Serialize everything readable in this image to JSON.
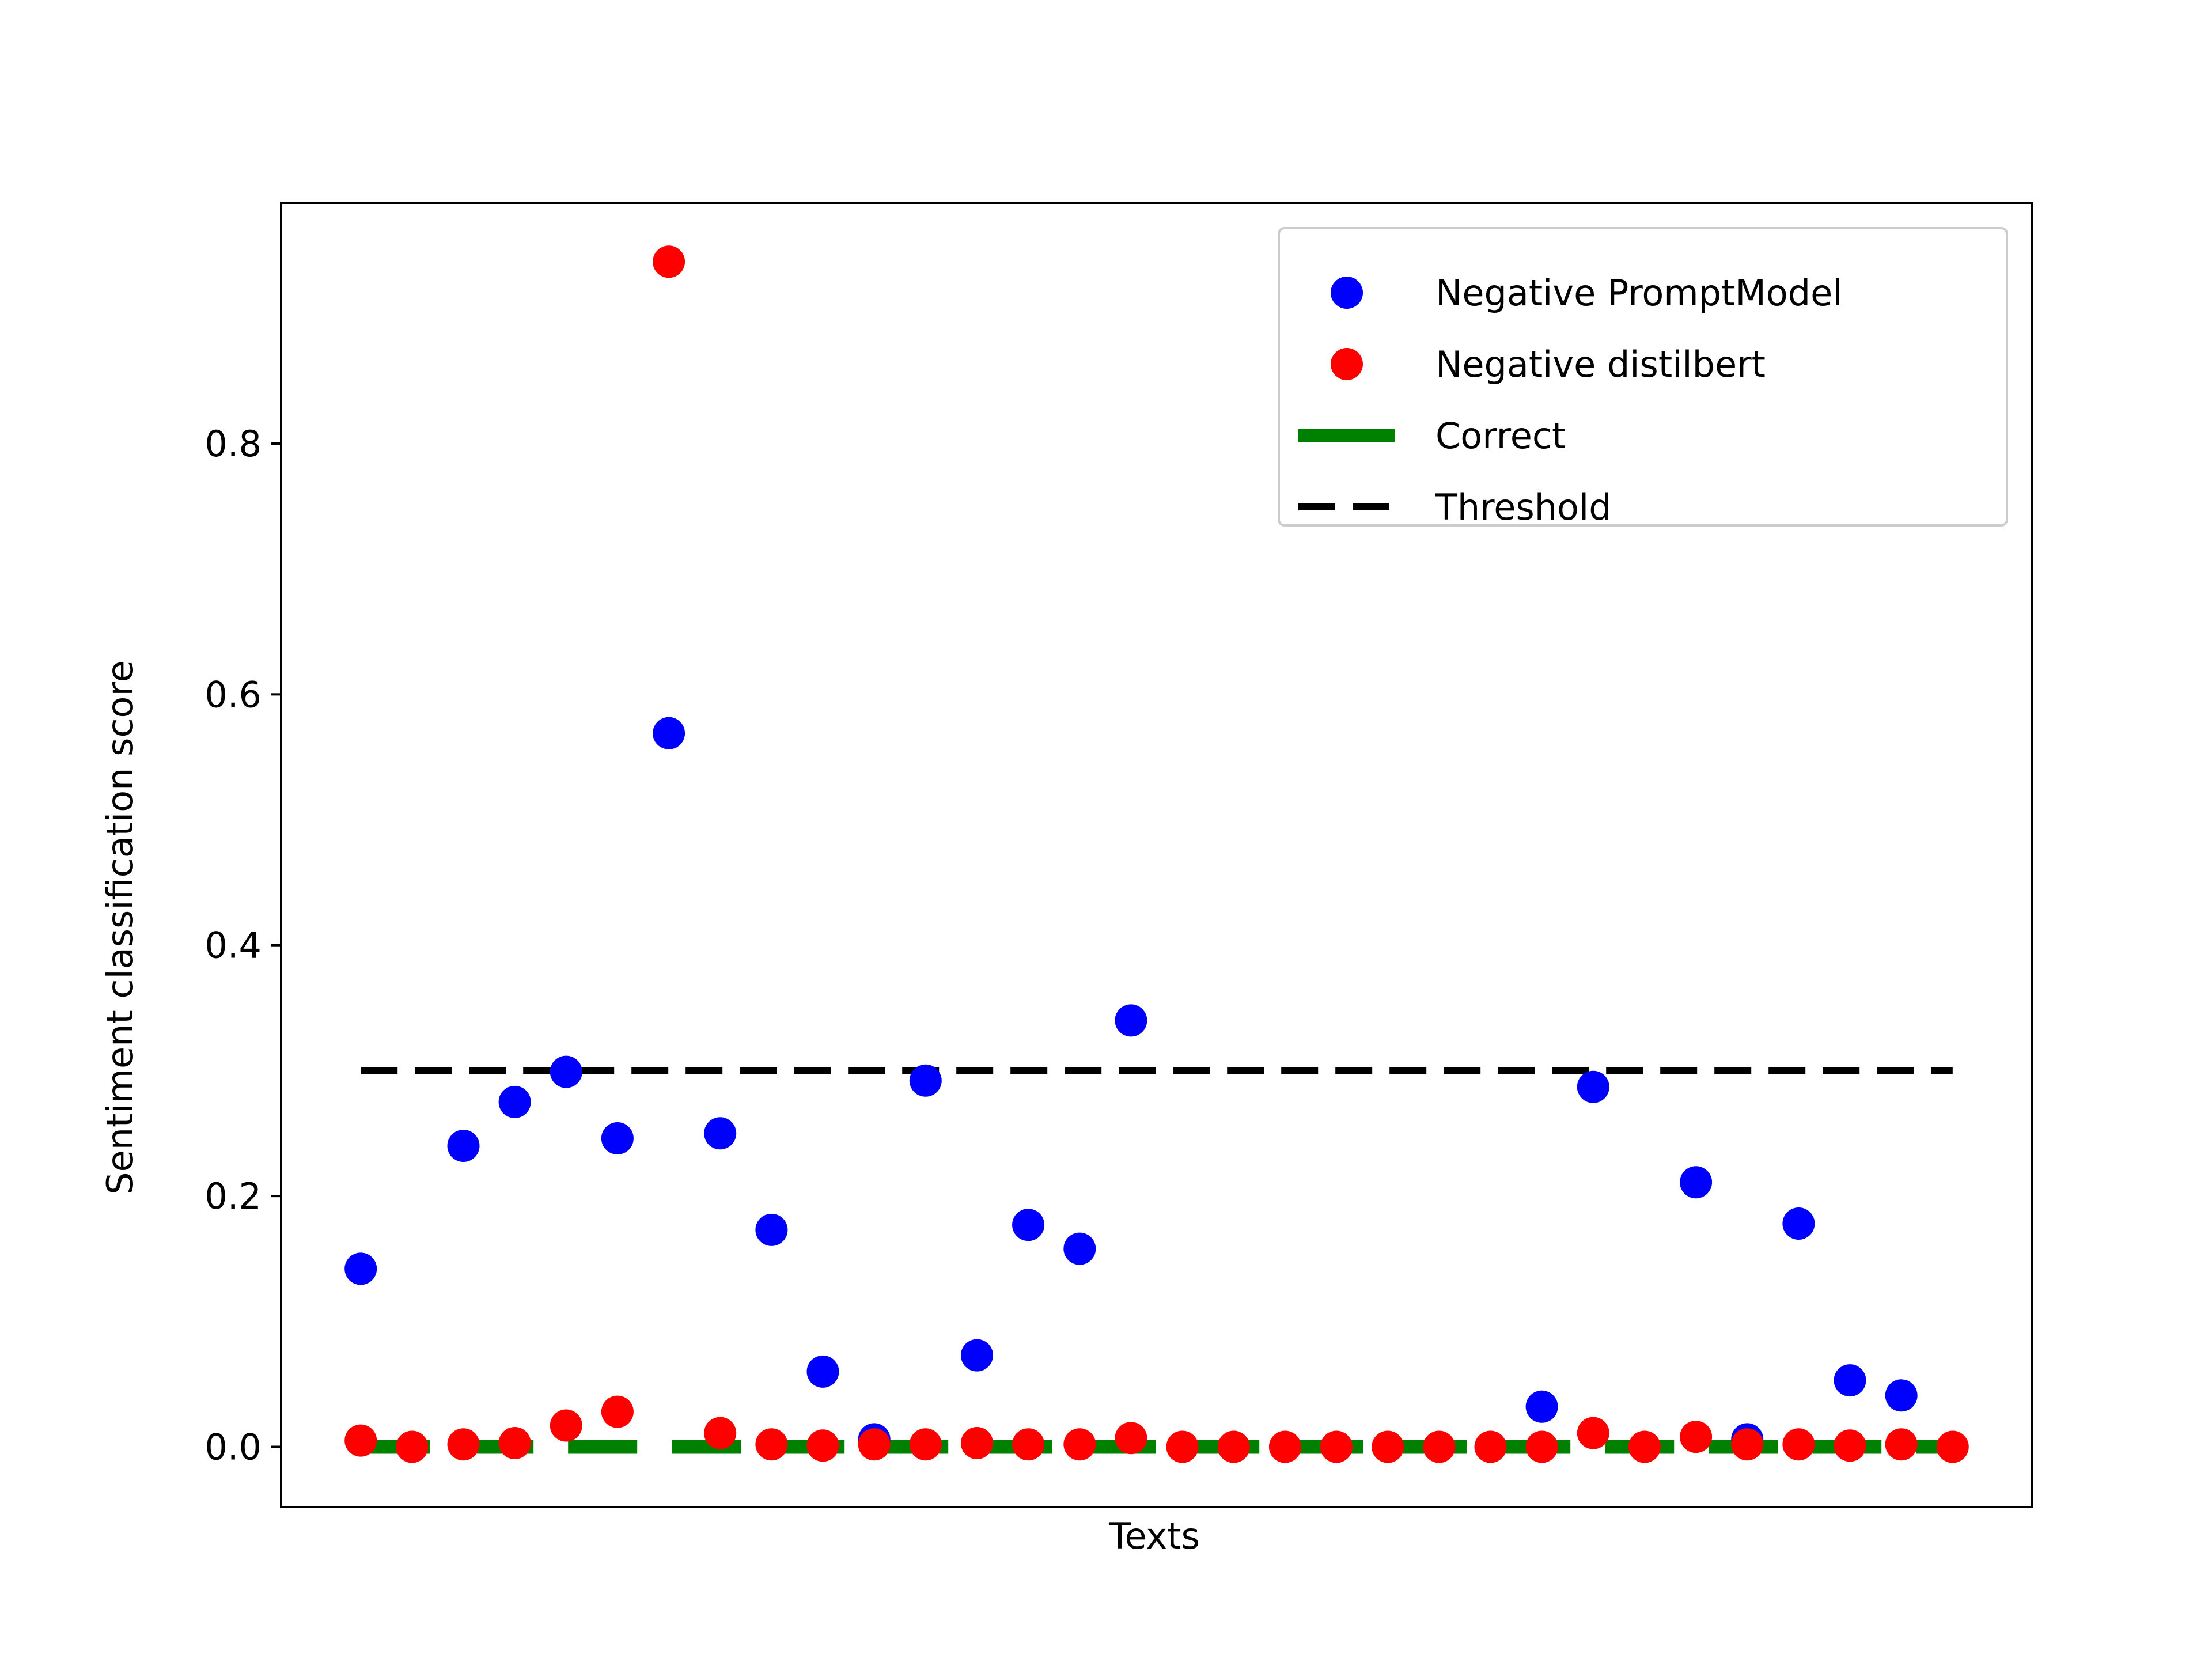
{
  "chart_data": {
    "type": "scatter",
    "title": "",
    "xlabel": "Texts",
    "ylabel": "Sentiment classification score",
    "x": [
      0,
      1,
      2,
      3,
      4,
      5,
      6,
      7,
      8,
      9,
      10,
      11,
      12,
      13,
      14,
      15,
      16,
      17,
      18,
      19,
      20,
      21,
      22,
      23,
      24,
      25,
      26,
      27,
      28,
      29,
      30,
      31
    ],
    "ylim": [
      -0.048,
      0.992
    ],
    "xlim": [
      -1.55,
      32.55
    ],
    "yticks": [
      0.0,
      0.2,
      0.4,
      0.6,
      0.8
    ],
    "ytick_labels": [
      "0.0",
      "0.2",
      "0.4",
      "0.6",
      "0.8"
    ],
    "xticks_visible": false,
    "grid": false,
    "legend_position": "top-right",
    "series": [
      {
        "name": "Negative PromptModel",
        "kind": "points",
        "color": "#0000ff",
        "values": [
          0.142,
          null,
          0.24,
          0.275,
          0.299,
          0.246,
          0.569,
          0.25,
          0.173,
          0.06,
          0.006,
          0.292,
          0.073,
          0.177,
          0.158,
          0.34,
          null,
          null,
          null,
          null,
          null,
          null,
          null,
          0.032,
          0.287,
          null,
          0.211,
          0.006,
          0.178,
          0.053,
          0.041,
          null
        ]
      },
      {
        "name": "Negative distilbert",
        "kind": "points",
        "color": "#ff0000",
        "values": [
          0.005,
          0.0,
          0.002,
          0.003,
          0.017,
          0.028,
          0.945,
          0.011,
          0.002,
          0.001,
          0.002,
          0.002,
          0.003,
          0.002,
          0.002,
          0.007,
          0.0,
          0.0,
          0.0,
          0.0,
          0.0,
          0.0,
          0.0,
          0.0,
          0.011,
          0.0,
          0.008,
          0.002,
          0.002,
          0.001,
          0.002,
          0.0
        ]
      },
      {
        "name": "Correct",
        "kind": "dashed-line",
        "color": "#008000",
        "values": [
          0,
          0,
          0,
          0,
          0,
          0,
          0,
          0,
          0,
          0,
          0,
          0,
          0,
          0,
          0,
          0,
          0,
          0,
          0,
          0,
          0,
          0,
          0,
          0,
          0,
          0,
          0,
          0,
          0,
          0,
          0,
          0
        ]
      },
      {
        "name": "Threshold",
        "kind": "dashed-line",
        "color": "#000000",
        "values": [
          0.3,
          0.3,
          0.3,
          0.3,
          0.3,
          0.3,
          0.3,
          0.3,
          0.3,
          0.3,
          0.3,
          0.3,
          0.3,
          0.3,
          0.3,
          0.3,
          0.3,
          0.3,
          0.3,
          0.3,
          0.3,
          0.3,
          0.3,
          0.3,
          0.3,
          0.3,
          0.3,
          0.3,
          0.3,
          0.3,
          0.3,
          0.3
        ]
      }
    ]
  }
}
